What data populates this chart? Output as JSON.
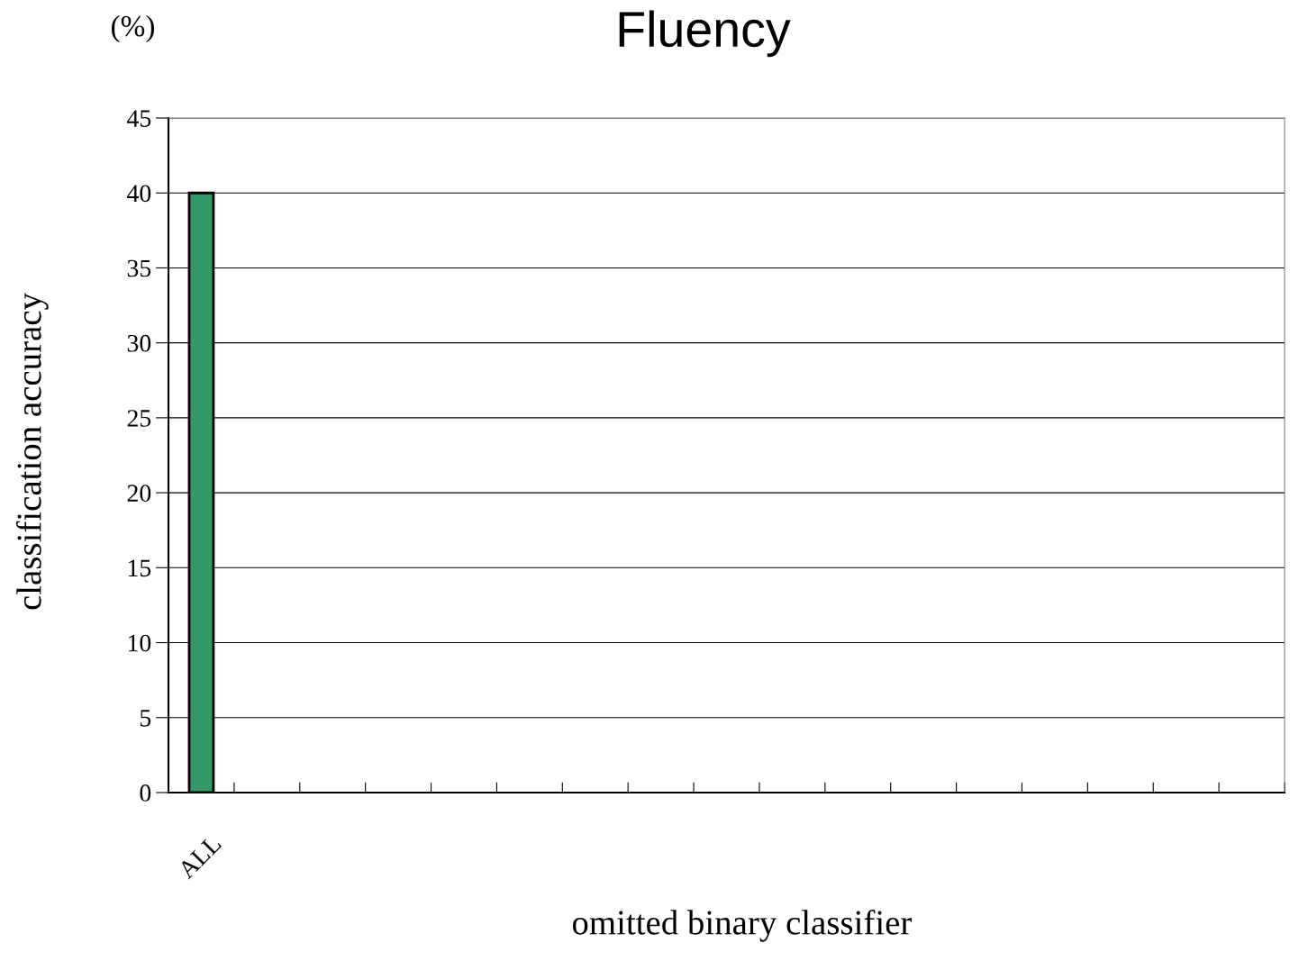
{
  "chart_data": {
    "type": "bar",
    "title": "Fluency",
    "xlabel": "omitted binary classifier",
    "ylabel": "classification accuracy",
    "annotations": [
      "(%)"
    ],
    "categories": [
      "ALL",
      null,
      null,
      null,
      null,
      null,
      null,
      null,
      null,
      null,
      null,
      null,
      null,
      null,
      null,
      null,
      null
    ],
    "values": [
      40,
      null,
      null,
      null,
      null,
      null,
      null,
      null,
      null,
      null,
      null,
      null,
      null,
      null,
      null,
      null,
      null
    ],
    "color": "#339966",
    "ylim": [
      0,
      45
    ],
    "yticks": [
      0,
      5,
      10,
      15,
      20,
      25,
      30,
      35,
      40,
      45
    ],
    "grid": "y"
  }
}
